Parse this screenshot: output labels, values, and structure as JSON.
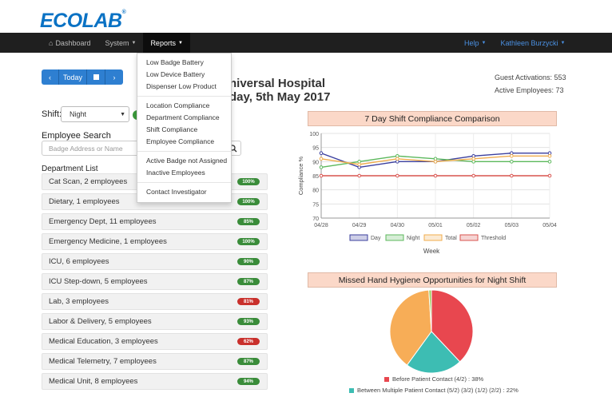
{
  "logo": {
    "text": "ECOLAB",
    "mark": "®"
  },
  "nav": {
    "dashboard": "Dashboard",
    "system": "System",
    "reports": "Reports",
    "help": "Help",
    "user": "Kathleen Burzycki"
  },
  "controls": {
    "today": "Today",
    "prev": "‹",
    "next": "›"
  },
  "header": {
    "hospital": "niversal Hospital",
    "date": "day, 5th May 2017",
    "guest_activations": "Guest Activations: 553",
    "active_employees": "Active Employees: 73"
  },
  "shift": {
    "label": "Shift:",
    "value": "Night"
  },
  "search": {
    "label": "Employee Search",
    "placeholder": "Badge Address or Name"
  },
  "department_list": {
    "title": "Department List",
    "items": [
      {
        "name": "Cat Scan, 2 employees",
        "badge": "100%",
        "color": "#3a8c3a"
      },
      {
        "name": "Dietary, 1 employees",
        "badge": "100%",
        "color": "#3a8c3a"
      },
      {
        "name": "Emergency Dept, 11 employees",
        "badge": "85%",
        "color": "#3a8c3a"
      },
      {
        "name": "Emergency Medicine, 1 employees",
        "badge": "100%",
        "color": "#3a8c3a"
      },
      {
        "name": "ICU, 6 employees",
        "badge": "90%",
        "color": "#3a8c3a"
      },
      {
        "name": "ICU Step-down, 5 employees",
        "badge": "87%",
        "color": "#3a8c3a"
      },
      {
        "name": "Lab, 3 employees",
        "badge": "81%",
        "color": "#c9302c"
      },
      {
        "name": "Labor & Delivery, 5 employees",
        "badge": "93%",
        "color": "#3a8c3a"
      },
      {
        "name": "Medical Education, 3 employees",
        "badge": "62%",
        "color": "#c9302c"
      },
      {
        "name": "Medical Telemetry, 7 employees",
        "badge": "87%",
        "color": "#3a8c3a"
      },
      {
        "name": "Medical Unit, 8 employees",
        "badge": "94%",
        "color": "#3a8c3a"
      }
    ]
  },
  "reports_menu": {
    "group1": [
      "Low Badge Battery",
      "Low Device Battery",
      "Dispenser Low Product"
    ],
    "group2": [
      "Location Compliance",
      "Department Compliance",
      "Shift Compliance",
      "Employee Compliance"
    ],
    "group3": [
      "Active Badge not Assigned",
      "Inactive Employees"
    ],
    "group4": [
      "Contact Investigator"
    ]
  },
  "chart_data": [
    {
      "type": "line",
      "title": "7 Day Shift Compliance Comparison",
      "xlabel": "Week",
      "ylabel": "Compliance %",
      "categories": [
        "04/28",
        "04/29",
        "04/30",
        "05/01",
        "05/02",
        "05/03",
        "05/04"
      ],
      "ylim": [
        70,
        100
      ],
      "yticks": [
        70,
        75,
        80,
        85,
        90,
        95,
        100
      ],
      "grid": true,
      "legend_position": "bottom",
      "series": [
        {
          "name": "Day",
          "color": "#3b3f9e",
          "values": [
            93,
            88,
            90,
            90,
            92,
            93,
            93
          ]
        },
        {
          "name": "Night",
          "color": "#5cb85c",
          "values": [
            88,
            90,
            92,
            91,
            90,
            90,
            90
          ]
        },
        {
          "name": "Total",
          "color": "#f0ad4e",
          "values": [
            91,
            89,
            91,
            90,
            91,
            92,
            92
          ]
        },
        {
          "name": "Threshold",
          "color": "#d9534f",
          "values": [
            85,
            85,
            85,
            85,
            85,
            85,
            85
          ]
        }
      ]
    },
    {
      "type": "pie",
      "title": "Missed Hand Hygiene Opportunities for Night Shift",
      "slices": [
        {
          "label": "Before Patient Contact (4/2) : 38%",
          "value": 38,
          "color": "#e8474f"
        },
        {
          "label": "Between Multiple Patient Contact (5/2) (3/2) (1/2) (2/2) : 22%",
          "value": 22,
          "color": "#3dbdb3"
        },
        {
          "label": "",
          "value": 39,
          "color": "#f7ad57"
        },
        {
          "label": "",
          "value": 1,
          "color": "#9ccf5c"
        }
      ]
    }
  ]
}
